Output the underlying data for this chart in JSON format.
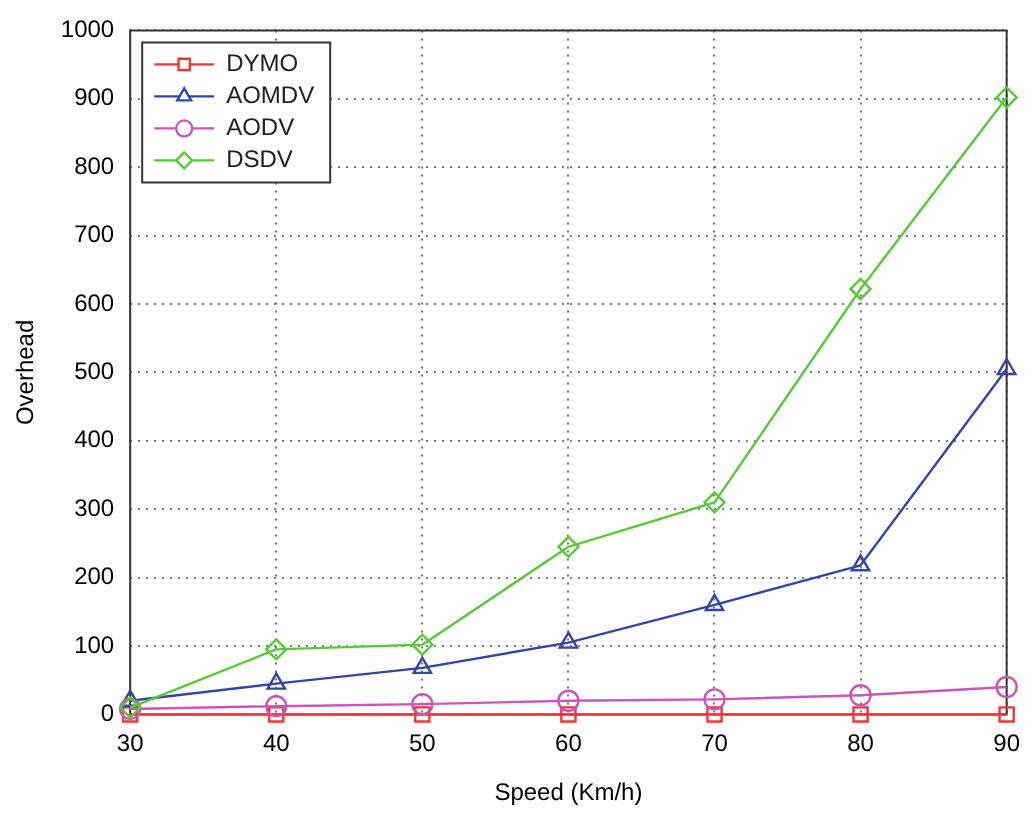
{
  "chart_data": {
    "type": "line",
    "xlabel": "Speed (Km/h)",
    "ylabel": "Overhead",
    "x": [
      30,
      40,
      50,
      60,
      70,
      80,
      90
    ],
    "xlim": [
      30,
      90
    ],
    "xticks": [
      30,
      40,
      50,
      60,
      70,
      80,
      90
    ],
    "ylim": [
      0,
      1000
    ],
    "yticks": [
      0,
      100,
      200,
      300,
      400,
      500,
      600,
      700,
      800,
      900,
      1000
    ],
    "grid": true,
    "legend": "top left",
    "line_style": "solid",
    "series": [
      {
        "name": "DYMO",
        "color": "#ff3333",
        "marker": "square",
        "values": [
          0,
          0,
          0,
          0,
          0,
          0,
          0
        ]
      },
      {
        "name": "AOMDV",
        "color": "#3344aa",
        "marker": "triangle",
        "values": [
          20,
          45,
          68,
          105,
          160,
          218,
          505
        ]
      },
      {
        "name": "AODV",
        "color": "#cc55bb",
        "marker": "circle",
        "values": [
          8,
          12,
          15,
          20,
          22,
          28,
          40
        ]
      },
      {
        "name": "DSDV",
        "color": "#55cc33",
        "marker": "diamond",
        "values": [
          10,
          95,
          102,
          245,
          310,
          622,
          902
        ]
      }
    ]
  }
}
